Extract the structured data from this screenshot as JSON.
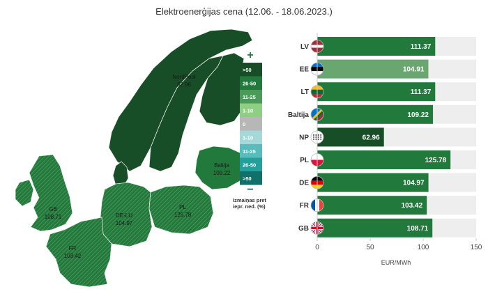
{
  "title": "Elektroenerģijas cena (12.06. - 18.06.2023.)",
  "chart_data": {
    "type": "bar",
    "orientation": "horizontal",
    "categories": [
      "LV",
      "EE",
      "LT",
      "Baltija",
      "NP",
      "PL",
      "DE",
      "FR",
      "GB"
    ],
    "values": [
      111.37,
      104.91,
      111.37,
      109.22,
      62.96,
      125.78,
      104.97,
      103.42,
      108.71
    ],
    "value_labels": [
      "111.37",
      "104.91",
      "111.37",
      "109.22",
      "62.96",
      "125.78",
      "104.97",
      "103.42",
      "108.71"
    ],
    "bar_colors": [
      "#217a3c",
      "#6aa66f",
      "#217a3c",
      "#217a3c",
      "#174d27",
      "#217a3c",
      "#217a3c",
      "#217a3c",
      "#217a3c"
    ],
    "xlabel": "EUR/MWh",
    "xlim": [
      0,
      150
    ],
    "xticks": [
      0,
      50,
      100,
      150
    ],
    "grid": false,
    "flag_icons": [
      "latvia-flag-icon",
      "estonia-flag-icon",
      "lithuania-flag-icon",
      "baltic-flags-icon",
      "nordpool-logo-icon",
      "poland-flag-icon",
      "germany-flag-icon",
      "france-flag-icon",
      "uk-flag-icon"
    ]
  },
  "map": {
    "regions": [
      {
        "name": "NordPool",
        "value": "62.96"
      },
      {
        "name": "Baltija",
        "value": "109.22"
      },
      {
        "name": "GB",
        "value": "108.71"
      },
      {
        "name": "DE-LU",
        "value": "104.97"
      },
      {
        "name": "PL",
        "value": "125.78"
      },
      {
        "name": "FR",
        "value": "103.42"
      }
    ],
    "legend": {
      "plus_symbol": "+",
      "minus_symbol": "−",
      "items": [
        ">50",
        "26-50",
        "11-25",
        "1-10",
        "0",
        "1-10",
        "11-25",
        "26-50",
        ">50"
      ],
      "colors": [
        "#174d27",
        "#217a3c",
        "#4b9a5a",
        "#8fcf84",
        "#b7b7b7",
        "#a5d8d8",
        "#58bcbc",
        "#23a09c",
        "#11716a"
      ],
      "note_line1": "Izmaiņas pret",
      "note_line2": "iepr. ned. (%)"
    }
  },
  "colors": {
    "dark_green": "#174d27",
    "green": "#217a3c",
    "light_green": "#6aa66f",
    "bar_background": "#eeeeee"
  }
}
